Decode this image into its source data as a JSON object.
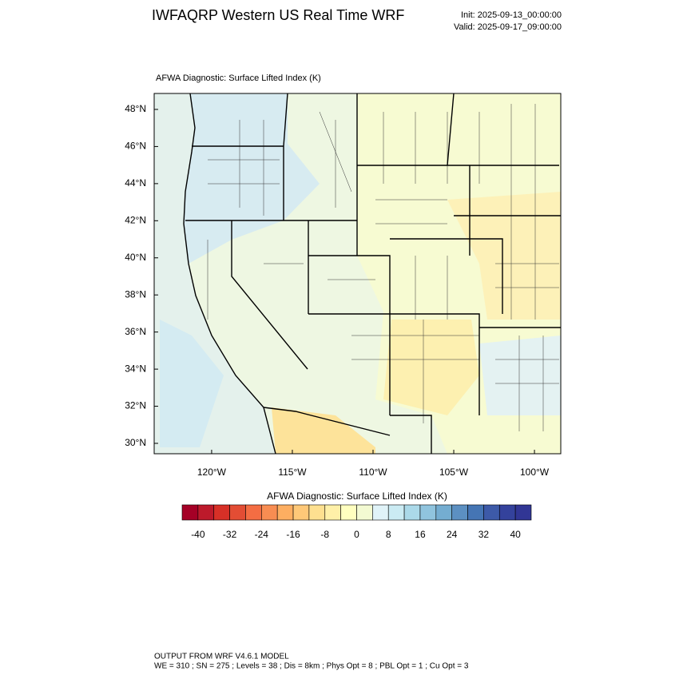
{
  "header": {
    "title": "IWFAQRP Western US Real Time WRF",
    "init": "Init: 2025-09-13_00:00:00",
    "valid": "Valid: 2025-09-17_09:00:00"
  },
  "map": {
    "title": "AFWA Diagnostic: Surface Lifted Index   (K)",
    "xlim": [
      -123.56,
      -98.37
    ],
    "ylim": [
      29.44,
      48.86
    ],
    "xticks": [
      {
        "value": -120,
        "label": "120°W"
      },
      {
        "value": -115,
        "label": "115°W"
      },
      {
        "value": -110,
        "label": "110°W"
      },
      {
        "value": -105,
        "label": "105°W"
      },
      {
        "value": -100,
        "label": "100°W"
      }
    ],
    "yticks": [
      {
        "value": 30,
        "label": "30°N"
      },
      {
        "value": 32,
        "label": "32°N"
      },
      {
        "value": 34,
        "label": "34°N"
      },
      {
        "value": 36,
        "label": "36°N"
      },
      {
        "value": 38,
        "label": "38°N"
      },
      {
        "value": 40,
        "label": "40°N"
      },
      {
        "value": 42,
        "label": "42°N"
      },
      {
        "value": 44,
        "label": "44°N"
      },
      {
        "value": 46,
        "label": "46°N"
      },
      {
        "value": 48,
        "label": "48°N"
      }
    ]
  },
  "colorbar": {
    "title": "AFWA Diagnostic: Surface Lifted Index  (K)",
    "range": [
      -44,
      44
    ],
    "colors": [
      "#a50026",
      "#bd1a2b",
      "#d73027",
      "#e34d34",
      "#f46d43",
      "#f88d52",
      "#fdae61",
      "#fec878",
      "#fee090",
      "#fff0a8",
      "#ffffbf",
      "#f3fad2",
      "#e0f3f8",
      "#cbebf3",
      "#abd9e9",
      "#90c4de",
      "#74add1",
      "#5c90c2",
      "#4575b4",
      "#3d5aa8",
      "#34429c",
      "#313695"
    ],
    "ticks": [
      -40,
      -32,
      -24,
      -16,
      -8,
      0,
      8,
      16,
      24,
      32,
      40
    ]
  },
  "footer": {
    "line1": "OUTPUT FROM WRF V4.6.1 MODEL",
    "line2": "WE = 310 ; SN = 275 ; Levels = 38 ; Dis = 8km ; Phys Opt = 8 ; PBL Opt = 1 ; Cu Opt = 3"
  }
}
